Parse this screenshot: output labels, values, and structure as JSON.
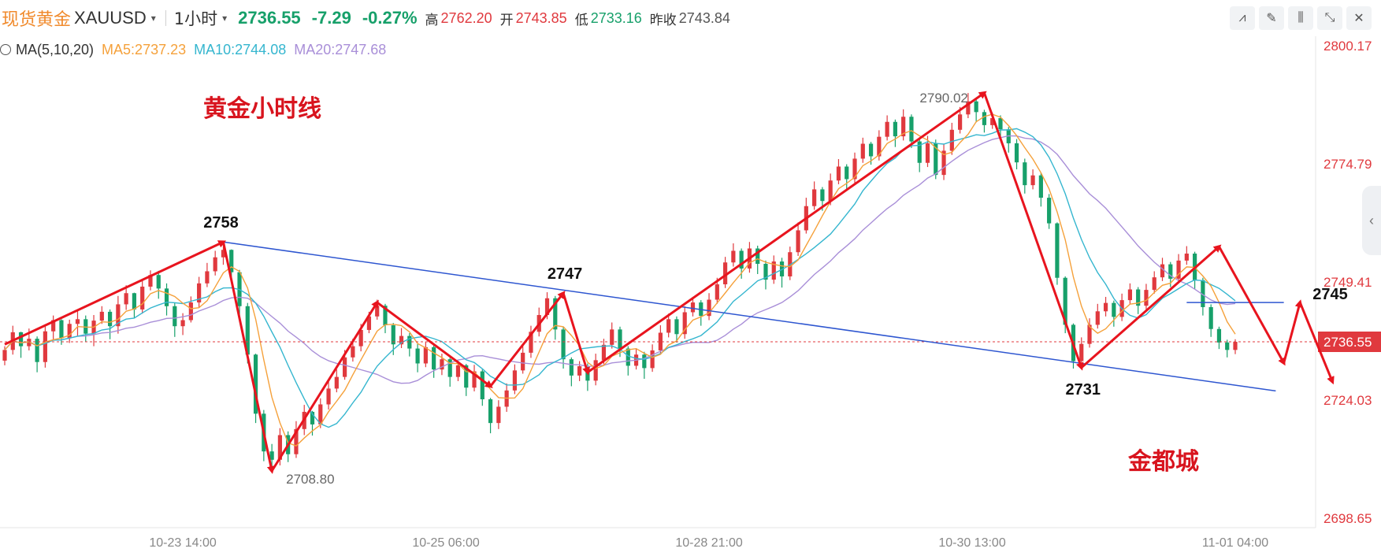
{
  "header": {
    "symbol_cn": "现货黄金",
    "symbol_code": "XAUUSD",
    "caret": "▾",
    "period": "1小时",
    "period_caret": "▾",
    "price": "2736.55",
    "change": "-7.29",
    "change_pct": "-0.27%",
    "high_label": "高",
    "high_value": "2762.20",
    "open_label": "开",
    "open_value": "2743.85",
    "low_label": "低",
    "low_value": "2733.16",
    "prev_label": "昨收",
    "prev_value": "2743.84"
  },
  "toolbar": [
    {
      "name": "indicator-icon",
      "glyph": "⩘"
    },
    {
      "name": "pen-icon",
      "glyph": "✎"
    },
    {
      "name": "candle-icon",
      "glyph": "⫼"
    },
    {
      "name": "shrink-icon",
      "glyph": "⤡"
    },
    {
      "name": "close-icon",
      "glyph": "✕"
    }
  ],
  "ma": {
    "label": "MA(5,10,20)",
    "ma5": "MA5:2737.23",
    "ma10": "MA10:2744.08",
    "ma20": "MA20:2747.68"
  },
  "colors": {
    "up": "#e0393e",
    "down": "#17a06a",
    "ma5": "#f5a13b",
    "ma10": "#35b6cf",
    "ma20": "#a98fd8",
    "annotation": "#e8141e",
    "trendline": "#2e56d0",
    "last_price_tag": "#e0393e"
  },
  "annotations": {
    "title": "黄金小时线",
    "watermark": "金都城",
    "labels": [
      "2758",
      "2747",
      "2731",
      "2745"
    ]
  },
  "chart_data": {
    "type": "candlestick",
    "title": "黄金小时线",
    "ylim": [
      2698.65,
      2800.17
    ],
    "y_ticks": [
      "2800.17",
      "2774.79",
      "2749.41",
      "2724.03",
      "2698.65"
    ],
    "x_ticks": [
      "10-23 14:00",
      "10-25 06:00",
      "10-28 21:00",
      "10-30 13:00",
      "11-01 04:00"
    ],
    "last_price": "2736.55",
    "series_extremes": {
      "high": "2790.02",
      "low": "2708.80"
    },
    "zigzag_path": [
      2736,
      2758,
      2708.8,
      2745,
      2727,
      2747,
      2730,
      2790.02,
      2731,
      2757,
      2732,
      2745,
      2728
    ],
    "trendline": [
      2758,
      2726
    ],
    "resistance_line": 2745,
    "candles_ohlc": [
      [
        2732.5,
        2735.6,
        2731.5,
        2734.8
      ],
      [
        2734.8,
        2740.0,
        2733.8,
        2738.6
      ],
      [
        2738.6,
        2738.7,
        2733.1,
        2735.6
      ],
      [
        2735.6,
        2739.4,
        2734.7,
        2737.2
      ],
      [
        2737.2,
        2737.7,
        2730.0,
        2732.2
      ],
      [
        2732.2,
        2740.3,
        2731.0,
        2738.8
      ],
      [
        2738.8,
        2742.2,
        2737.0,
        2741.2
      ],
      [
        2741.2,
        2741.4,
        2735.9,
        2737.3
      ],
      [
        2737.3,
        2741.3,
        2736.3,
        2740.4
      ],
      [
        2740.4,
        2743.4,
        2737.8,
        2741.4
      ],
      [
        2741.4,
        2742.2,
        2736.6,
        2738.3
      ],
      [
        2738.3,
        2742.3,
        2735.6,
        2741.1
      ],
      [
        2741.1,
        2744.2,
        2740.4,
        2743.0
      ],
      [
        2743.0,
        2743.5,
        2737.1,
        2739.9
      ],
      [
        2739.9,
        2746.4,
        2738.3,
        2744.6
      ],
      [
        2744.6,
        2748.7,
        2743.4,
        2747.0
      ],
      [
        2747.0,
        2747.1,
        2741.7,
        2743.5
      ],
      [
        2743.5,
        2749.7,
        2742.6,
        2748.4
      ],
      [
        2748.4,
        2751.9,
        2747.6,
        2750.9
      ],
      [
        2750.9,
        2751.8,
        2745.8,
        2748.0
      ],
      [
        2748.0,
        2749.1,
        2742.2,
        2744.2
      ],
      [
        2744.2,
        2745.0,
        2737.6,
        2739.9
      ],
      [
        2739.9,
        2742.7,
        2738.0,
        2741.2
      ],
      [
        2741.2,
        2746.3,
        2740.7,
        2745.0
      ],
      [
        2745.0,
        2750.5,
        2743.9,
        2749.1
      ],
      [
        2749.1,
        2753.5,
        2748.3,
        2751.7
      ],
      [
        2751.7,
        2756.1,
        2750.8,
        2754.7
      ],
      [
        2754.7,
        2758.0,
        2753.1,
        2756.3
      ],
      [
        2756.3,
        2756.4,
        2750.1,
        2751.5
      ],
      [
        2751.5,
        2752.0,
        2742.0,
        2744.2
      ],
      [
        2744.2,
        2744.9,
        2731.9,
        2733.8
      ],
      [
        2733.8,
        2734.0,
        2719.1,
        2721.1
      ],
      [
        2721.1,
        2721.9,
        2710.9,
        2713.0
      ],
      [
        2713.0,
        2714.6,
        2708.8,
        2711.2
      ],
      [
        2711.2,
        2718.0,
        2710.0,
        2716.5
      ],
      [
        2716.5,
        2717.3,
        2710.7,
        2712.4
      ],
      [
        2712.4,
        2719.5,
        2711.6,
        2717.8
      ],
      [
        2717.8,
        2723.0,
        2716.5,
        2721.5
      ],
      [
        2721.5,
        2721.7,
        2716.4,
        2718.8
      ],
      [
        2718.8,
        2724.4,
        2718.0,
        2723.1
      ],
      [
        2723.1,
        2728.0,
        2722.0,
        2726.5
      ],
      [
        2726.5,
        2730.6,
        2725.7,
        2729.0
      ],
      [
        2729.0,
        2734.8,
        2728.4,
        2733.2
      ],
      [
        2733.2,
        2737.2,
        2732.3,
        2735.6
      ],
      [
        2735.6,
        2740.4,
        2734.5,
        2739.1
      ],
      [
        2739.1,
        2743.0,
        2738.4,
        2742.0
      ],
      [
        2742.0,
        2745.6,
        2741.3,
        2744.3
      ],
      [
        2744.3,
        2744.7,
        2738.4,
        2740.1
      ],
      [
        2740.1,
        2740.6,
        2733.7,
        2736.0
      ],
      [
        2736.0,
        2739.5,
        2735.2,
        2737.8
      ],
      [
        2737.8,
        2738.4,
        2733.4,
        2735.1
      ],
      [
        2735.1,
        2736.2,
        2730.0,
        2731.9
      ],
      [
        2731.9,
        2736.6,
        2731.1,
        2735.4
      ],
      [
        2735.4,
        2735.9,
        2728.8,
        2730.6
      ],
      [
        2730.6,
        2734.0,
        2729.4,
        2732.8
      ],
      [
        2732.8,
        2733.1,
        2726.9,
        2729.0
      ],
      [
        2729.0,
        2732.5,
        2728.1,
        2731.5
      ],
      [
        2731.5,
        2731.8,
        2724.9,
        2726.7
      ],
      [
        2726.7,
        2731.6,
        2725.9,
        2730.2
      ],
      [
        2730.2,
        2730.6,
        2722.8,
        2724.2
      ],
      [
        2724.2,
        2724.5,
        2716.9,
        2719.1
      ],
      [
        2719.1,
        2724.0,
        2717.8,
        2722.6
      ],
      [
        2722.6,
        2727.6,
        2721.5,
        2726.1
      ],
      [
        2726.1,
        2731.7,
        2725.3,
        2730.4
      ],
      [
        2730.4,
        2735.6,
        2729.7,
        2734.2
      ],
      [
        2734.2,
        2740.0,
        2733.1,
        2738.7
      ],
      [
        2738.7,
        2743.9,
        2737.7,
        2742.3
      ],
      [
        2742.3,
        2747.2,
        2741.4,
        2745.9
      ],
      [
        2745.9,
        2746.4,
        2737.0,
        2739.2
      ],
      [
        2739.2,
        2739.7,
        2730.8,
        2732.8
      ],
      [
        2732.8,
        2733.2,
        2727.0,
        2729.3
      ],
      [
        2729.3,
        2732.4,
        2728.1,
        2731.3
      ],
      [
        2731.3,
        2731.9,
        2726.0,
        2728.2
      ],
      [
        2728.2,
        2734.0,
        2727.2,
        2732.6
      ],
      [
        2732.6,
        2737.2,
        2731.7,
        2735.9
      ],
      [
        2735.9,
        2740.7,
        2735.1,
        2739.2
      ],
      [
        2739.2,
        2739.8,
        2733.3,
        2735.1
      ],
      [
        2735.1,
        2735.6,
        2729.3,
        2731.4
      ],
      [
        2731.4,
        2735.0,
        2730.6,
        2733.8
      ],
      [
        2733.8,
        2734.4,
        2728.6,
        2730.9
      ],
      [
        2730.9,
        2736.0,
        2730.1,
        2734.7
      ],
      [
        2734.7,
        2740.1,
        2733.9,
        2738.5
      ],
      [
        2738.5,
        2742.6,
        2737.5,
        2741.4
      ],
      [
        2741.4,
        2742.0,
        2736.4,
        2738.2
      ],
      [
        2738.2,
        2744.2,
        2737.2,
        2742.9
      ],
      [
        2742.9,
        2746.2,
        2742.0,
        2745.0
      ],
      [
        2745.0,
        2745.5,
        2740.0,
        2742.1
      ],
      [
        2742.1,
        2747.0,
        2741.2,
        2745.6
      ],
      [
        2745.6,
        2750.3,
        2744.7,
        2748.9
      ],
      [
        2748.9,
        2754.8,
        2748.1,
        2753.6
      ],
      [
        2753.6,
        2757.7,
        2752.7,
        2756.1
      ],
      [
        2756.1,
        2756.6,
        2750.1,
        2752.3
      ],
      [
        2752.3,
        2758.0,
        2751.4,
        2756.6
      ],
      [
        2756.6,
        2757.2,
        2751.1,
        2753.3
      ],
      [
        2753.3,
        2754.0,
        2747.8,
        2749.9
      ],
      [
        2749.9,
        2755.1,
        2749.0,
        2753.8
      ],
      [
        2753.8,
        2754.6,
        2748.2,
        2750.6
      ],
      [
        2750.6,
        2757.0,
        2749.8,
        2755.8
      ],
      [
        2755.8,
        2762.2,
        2755.0,
        2760.5
      ],
      [
        2760.5,
        2767.5,
        2759.8,
        2765.7
      ],
      [
        2765.7,
        2771.0,
        2764.9,
        2769.3
      ],
      [
        2769.3,
        2769.8,
        2764.7,
        2766.8
      ],
      [
        2766.8,
        2772.7,
        2765.9,
        2771.2
      ],
      [
        2771.2,
        2775.8,
        2770.4,
        2774.2
      ],
      [
        2774.2,
        2774.7,
        2769.4,
        2771.5
      ],
      [
        2771.5,
        2777.2,
        2770.7,
        2775.9
      ],
      [
        2775.9,
        2780.4,
        2775.0,
        2779.1
      ],
      [
        2779.1,
        2779.5,
        2774.6,
        2776.4
      ],
      [
        2776.4,
        2782.0,
        2775.5,
        2780.6
      ],
      [
        2780.6,
        2785.2,
        2779.8,
        2783.8
      ],
      [
        2783.8,
        2784.3,
        2778.4,
        2780.7
      ],
      [
        2780.7,
        2786.5,
        2779.8,
        2784.9
      ],
      [
        2784.9,
        2785.4,
        2778.2,
        2779.6
      ],
      [
        2779.6,
        2780.1,
        2773.0,
        2775.0
      ],
      [
        2775.0,
        2780.8,
        2774.1,
        2779.2
      ],
      [
        2779.2,
        2780.0,
        2771.5,
        2772.4
      ],
      [
        2772.4,
        2779.0,
        2771.3,
        2777.6
      ],
      [
        2777.6,
        2783.6,
        2776.7,
        2782.1
      ],
      [
        2782.1,
        2787.0,
        2781.3,
        2785.4
      ],
      [
        2785.4,
        2790.0,
        2784.6,
        2788.2
      ],
      [
        2788.2,
        2788.8,
        2783.7,
        2785.9
      ],
      [
        2785.9,
        2786.4,
        2781.5,
        2783.1
      ],
      [
        2783.1,
        2785.8,
        2782.3,
        2784.6
      ],
      [
        2784.6,
        2785.2,
        2780.5,
        2782.2
      ],
      [
        2782.2,
        2782.7,
        2777.2,
        2779.2
      ],
      [
        2779.2,
        2780.1,
        2773.6,
        2775.1
      ],
      [
        2775.1,
        2775.9,
        2768.4,
        2770.2
      ],
      [
        2770.2,
        2773.6,
        2769.3,
        2772.3
      ],
      [
        2772.3,
        2772.9,
        2765.6,
        2767.5
      ],
      [
        2767.5,
        2768.3,
        2760.8,
        2762.0
      ],
      [
        2762.0,
        2762.2,
        2748.8,
        2750.3
      ],
      [
        2750.3,
        2750.6,
        2738.4,
        2740.2
      ],
      [
        2740.2,
        2740.5,
        2730.8,
        2732.4
      ],
      [
        2732.4,
        2737.5,
        2731.2,
        2736.1
      ],
      [
        2736.1,
        2741.6,
        2735.3,
        2740.2
      ],
      [
        2740.2,
        2744.7,
        2739.4,
        2743.1
      ],
      [
        2743.1,
        2746.2,
        2742.0,
        2744.9
      ],
      [
        2744.9,
        2745.4,
        2739.8,
        2741.9
      ],
      [
        2741.9,
        2746.9,
        2741.0,
        2745.5
      ],
      [
        2745.5,
        2749.1,
        2744.6,
        2747.8
      ],
      [
        2747.8,
        2748.3,
        2742.5,
        2744.3
      ],
      [
        2744.3,
        2749.0,
        2743.5,
        2747.7
      ],
      [
        2747.7,
        2751.7,
        2746.9,
        2750.4
      ],
      [
        2750.4,
        2754.6,
        2749.6,
        2753.2
      ],
      [
        2753.2,
        2753.7,
        2748.3,
        2750.1
      ],
      [
        2750.1,
        2755.4,
        2749.2,
        2754.0
      ],
      [
        2754.0,
        2757.1,
        2753.1,
        2755.5
      ],
      [
        2755.5,
        2755.9,
        2747.9,
        2749.8
      ],
      [
        2749.8,
        2750.3,
        2742.2,
        2744.0
      ],
      [
        2744.0,
        2744.6,
        2737.6,
        2739.3
      ],
      [
        2739.3,
        2739.8,
        2735.0,
        2736.4
      ],
      [
        2736.4,
        2737.0,
        2733.2,
        2734.8
      ],
      [
        2734.8,
        2737.1,
        2733.9,
        2736.55
      ]
    ]
  }
}
